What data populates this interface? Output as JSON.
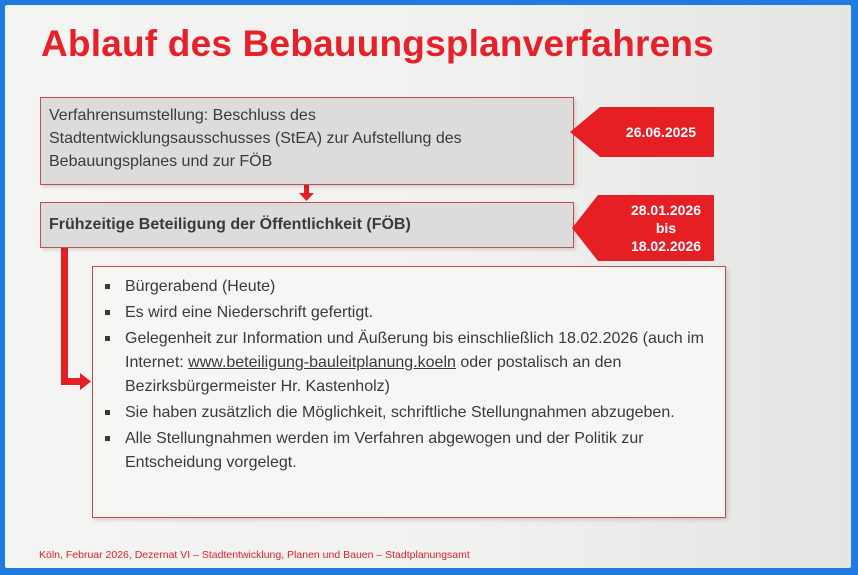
{
  "title": "Ablauf des Bebauungsplanverfahrens",
  "step1": {
    "lines": [
      "Verfahrensumstellung: Beschluss des",
      "Stadtentwicklungsausschusses (StEA) zur Aufstellung des",
      "Bebauungsplanes und zur FÖB"
    ],
    "date": "26.06.2025"
  },
  "step2": {
    "text": "Frühzeitige Beteiligung der Öffentlichkeit (FÖB)",
    "date_start": "28.01.2026",
    "date_mid": "bis",
    "date_end": "18.02.2026"
  },
  "bullets": [
    {
      "lines": [
        "Bürgerabend (Heute)"
      ]
    },
    {
      "lines": [
        "Es wird eine Niederschrift gefertigt."
      ]
    },
    {
      "pre": "Gelegenheit zur Information und Äußerung bis einschließlich 18.02.2026 (auch im Internet: ",
      "link": "www.beteiligung-bauleitplanung.koeln",
      "post": " oder postalisch an den Bezirksbürgermeister Hr. Kastenholz)"
    },
    {
      "lines": [
        "Sie haben zusätzlich die Möglichkeit, schriftliche Stellungnahmen abzugeben."
      ]
    },
    {
      "lines": [
        "Alle Stellungnahmen werden im Verfahren abgewogen und der Politik zur Entscheidung vorgelegt."
      ]
    }
  ],
  "footer": "Köln, Februar 2026, Dezernat VI – Stadtentwicklung, Planen und Bauen – Stadtplanungsamt",
  "colors": {
    "accent": "#e51f24",
    "frame": "#1f7be0",
    "box": "#dcdcdc",
    "text": "#3a3a3a"
  }
}
